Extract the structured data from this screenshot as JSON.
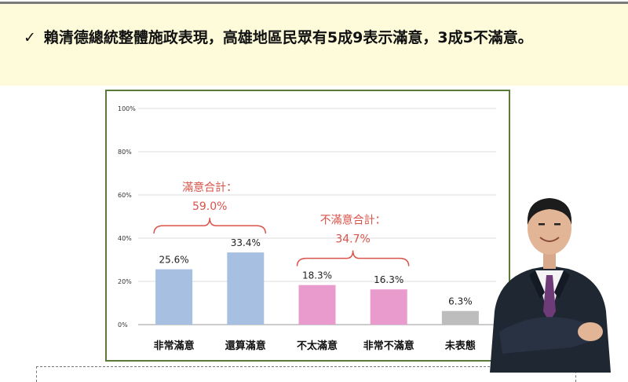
{
  "headline": {
    "check_glyph": "✓",
    "text": "賴清德總統整體施政表現，高雄地區民眾有5成9表示滿意，3成5不滿意。"
  },
  "chart_data": {
    "type": "bar",
    "categories": [
      "非常滿意",
      "還算滿意",
      "不太滿意",
      "非常不滿意",
      "未表態"
    ],
    "values": [
      25.6,
      33.4,
      18.3,
      16.3,
      6.3
    ],
    "value_labels": [
      "25.6%",
      "33.4%",
      "18.3%",
      "16.3%",
      "6.3%"
    ],
    "bar_colors": [
      "#a7c0e1",
      "#a7c0e1",
      "#ea9bcd",
      "#ea9bcd",
      "#bdbdbd"
    ],
    "ylim": [
      0,
      100
    ],
    "yticks": [
      0,
      20,
      40,
      60,
      80,
      100
    ],
    "ytick_labels": [
      "0%",
      "20%",
      "40%",
      "60%",
      "80%",
      "100%"
    ],
    "grid": true,
    "annotations": [
      {
        "label": "滿意合計：",
        "value": "59.0%",
        "spans": [
          0,
          1
        ],
        "color": "#d9534a"
      },
      {
        "label": "不滿意合計：",
        "value": "34.7%",
        "spans": [
          2,
          3
        ],
        "color": "#d9534a"
      }
    ]
  },
  "portrait": {
    "icon": "person-portrait"
  }
}
